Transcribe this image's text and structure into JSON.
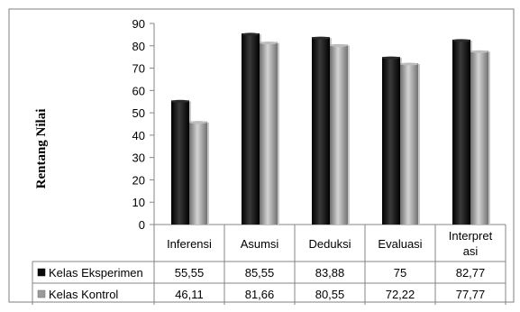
{
  "chart_data": {
    "type": "bar",
    "title": "",
    "xlabel": "",
    "ylabel": "Rentang Nilai",
    "ylim": [
      0,
      90
    ],
    "yticks": [
      0,
      10,
      20,
      30,
      40,
      50,
      60,
      70,
      80,
      90
    ],
    "grid": false,
    "legend": "data-table",
    "categories": [
      "Inferensi",
      "Asumsi",
      "Deduksi",
      "Evaluasi",
      "Interpretasi"
    ],
    "category_display_lines": [
      [
        "Inferensi"
      ],
      [
        "Asumsi"
      ],
      [
        "Deduksi"
      ],
      [
        "Evaluasi"
      ],
      [
        "Interpret",
        "asi"
      ]
    ],
    "series": [
      {
        "name": "Kelas Eksperimen",
        "color": "#0a0a0a",
        "values": [
          55.55,
          85.55,
          83.88,
          75,
          82.77
        ],
        "value_labels": [
          "55,55",
          "85,55",
          "83,88",
          "75",
          "82,77"
        ]
      },
      {
        "name": "Kelas Kontrol",
        "color": "#9a9a9a",
        "values": [
          46.11,
          81.66,
          80.55,
          72.22,
          77.77
        ],
        "value_labels": [
          "46,11",
          "81,66",
          "80,55",
          "72,22",
          "77,77"
        ]
      }
    ]
  }
}
